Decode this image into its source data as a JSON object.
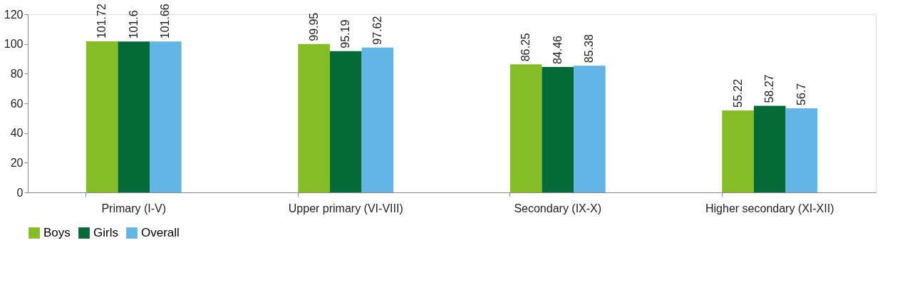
{
  "chart_data": {
    "type": "bar",
    "categories": [
      "Primary (I-V)",
      "Upper primary (VI-VIII)",
      "Secondary (IX-X)",
      "Higher secondary (XI-XII)"
    ],
    "series": [
      {
        "name": "Boys",
        "color": "#86bc25",
        "values": [
          101.72,
          99.95,
          86.25,
          55.22
        ]
      },
      {
        "name": "Girls",
        "color": "#046a38",
        "values": [
          101.6,
          95.19,
          84.46,
          58.27
        ]
      },
      {
        "name": "Overall",
        "color": "#62b5e5",
        "values": [
          101.66,
          97.62,
          85.38,
          56.7
        ]
      }
    ],
    "ylim": [
      0,
      120
    ],
    "yticks": [
      0,
      20,
      40,
      60,
      80,
      100,
      120
    ],
    "grid": false,
    "legend": "bottom",
    "data_labels": true
  }
}
